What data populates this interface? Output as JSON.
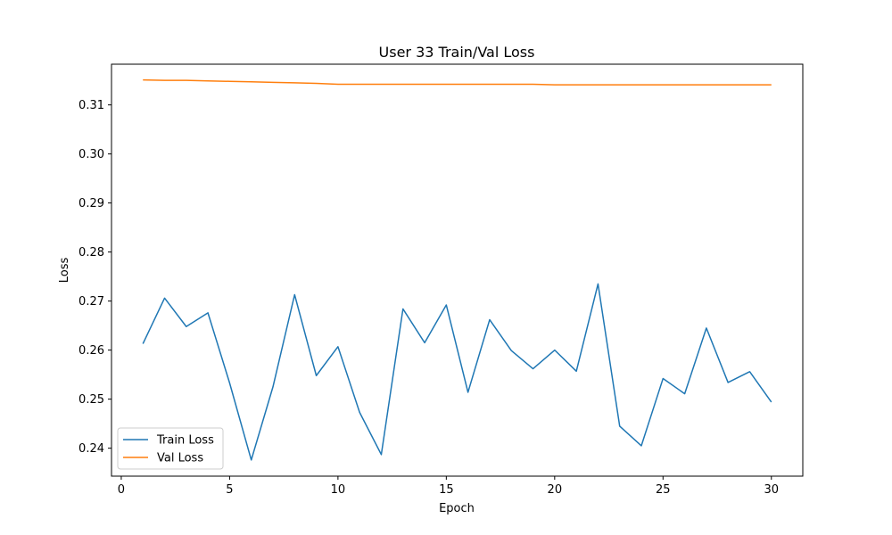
{
  "chart_data": {
    "type": "line",
    "title": "User 33 Train/Val Loss",
    "xlabel": "Epoch",
    "ylabel": "Loss",
    "xlim": [
      -0.45,
      31.45
    ],
    "ylim": [
      0.2343,
      0.3183
    ],
    "xticks": [
      0,
      5,
      10,
      15,
      20,
      25,
      30
    ],
    "yticks": [
      0.24,
      0.25,
      0.26,
      0.27,
      0.28,
      0.29,
      0.3,
      0.31
    ],
    "ytick_labels": [
      "0.24",
      "0.25",
      "0.26",
      "0.27",
      "0.28",
      "0.29",
      "0.30",
      "0.31"
    ],
    "grid": false,
    "legend": "lower-left",
    "x": [
      1,
      2,
      3,
      4,
      5,
      6,
      7,
      8,
      9,
      10,
      11,
      12,
      13,
      14,
      15,
      16,
      17,
      18,
      19,
      20,
      21,
      22,
      23,
      24,
      25,
      26,
      27,
      28,
      29,
      30
    ],
    "series": [
      {
        "name": "Train Loss",
        "color": "#1f77b4",
        "values": [
          0.2613,
          0.2706,
          0.2648,
          0.2676,
          0.2533,
          0.2376,
          0.2525,
          0.2713,
          0.2548,
          0.2607,
          0.2473,
          0.2387,
          0.2684,
          0.2615,
          0.2692,
          0.2514,
          0.2662,
          0.2599,
          0.2562,
          0.26,
          0.2557,
          0.2735,
          0.2445,
          0.2405,
          0.2542,
          0.2511,
          0.2645,
          0.2534,
          0.2556,
          0.2494
        ]
      },
      {
        "name": "Val Loss",
        "color": "#ff7f0e",
        "values": [
          0.3151,
          0.315,
          0.315,
          0.3149,
          0.3148,
          0.3147,
          0.3146,
          0.3145,
          0.3144,
          0.3142,
          0.3142,
          0.3142,
          0.3142,
          0.3142,
          0.3142,
          0.3142,
          0.3142,
          0.3142,
          0.3142,
          0.3141,
          0.3141,
          0.3141,
          0.3141,
          0.3141,
          0.3141,
          0.3141,
          0.3141,
          0.3141,
          0.3141,
          0.3141
        ]
      }
    ]
  }
}
